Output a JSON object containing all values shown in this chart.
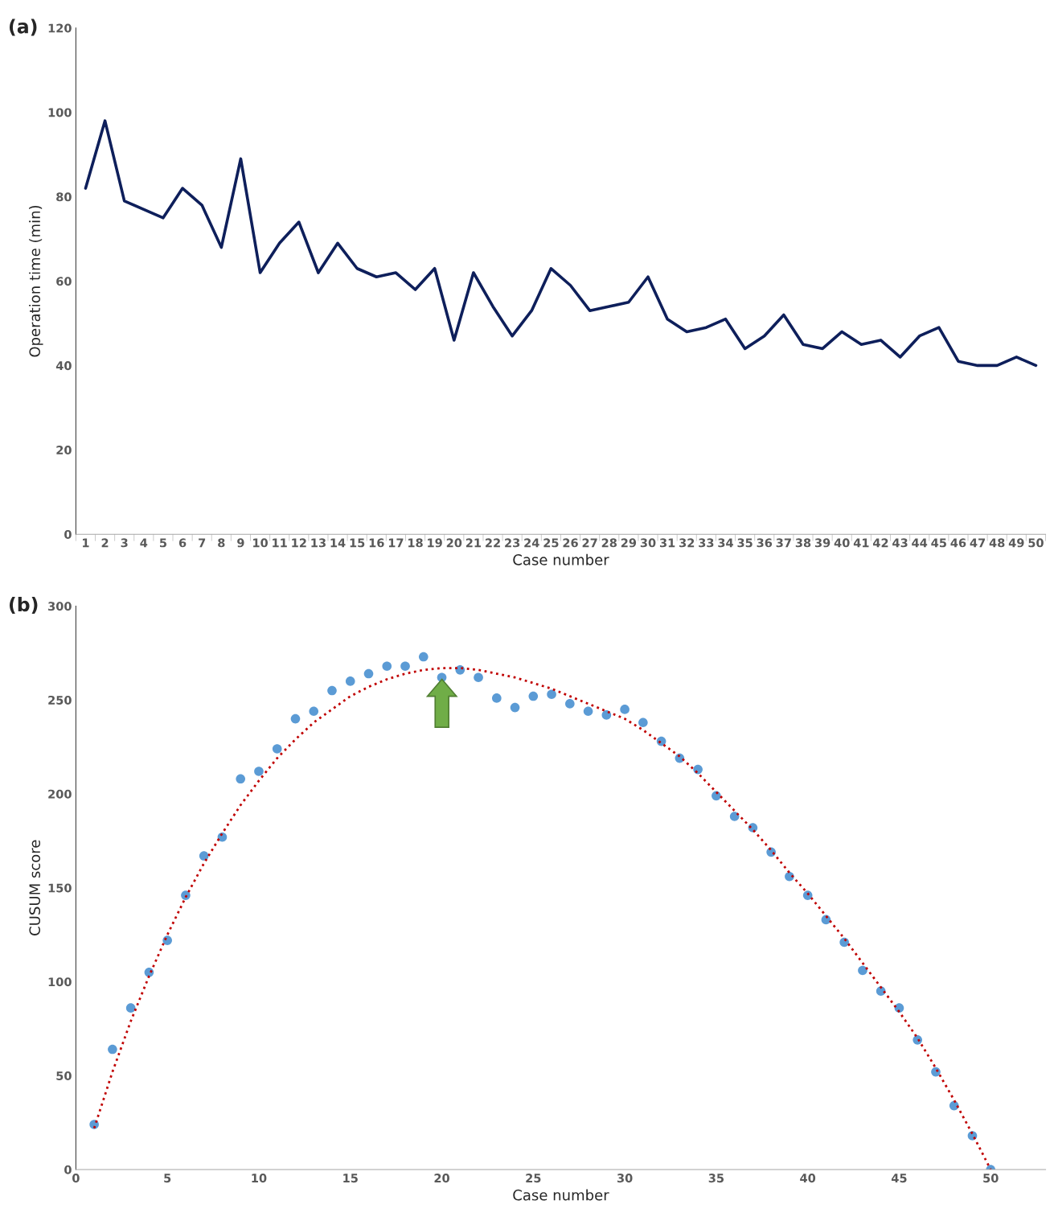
{
  "chart_data": [
    {
      "type": "line",
      "title": "(a)",
      "xlabel": "Case number",
      "ylabel": "Operation time (min)",
      "categories": [
        "1",
        "2",
        "3",
        "4",
        "5",
        "6",
        "7",
        "8",
        "9",
        "10",
        "11",
        "12",
        "13",
        "14",
        "15",
        "16",
        "17",
        "18",
        "19",
        "20",
        "21",
        "22",
        "23",
        "24",
        "25",
        "26",
        "27",
        "28",
        "29",
        "30",
        "31",
        "32",
        "33",
        "34",
        "35",
        "36",
        "37",
        "38",
        "39",
        "40",
        "41",
        "42",
        "43",
        "44",
        "45",
        "46",
        "47",
        "48",
        "49",
        "50"
      ],
      "series": [
        {
          "color": "#0e1f5b",
          "values": [
            82,
            98,
            79,
            77,
            75,
            82,
            78,
            68,
            89,
            62,
            69,
            74,
            62,
            69,
            63,
            61,
            62,
            58,
            63,
            46,
            62,
            54,
            47,
            53,
            63,
            59,
            53,
            54,
            55,
            61,
            51,
            48,
            49,
            51,
            44,
            47,
            52,
            45,
            44,
            48,
            45,
            46,
            42,
            47,
            49,
            41,
            40,
            40,
            42,
            40
          ]
        }
      ],
      "ylim": [
        0,
        120
      ],
      "yticks": [
        0,
        20,
        40,
        60,
        80,
        100,
        120
      ],
      "grid": false,
      "legend": false,
      "marker": "none",
      "line_style": "solid"
    },
    {
      "type": "scatter",
      "title": "(b)",
      "xlabel": "Case number",
      "ylabel": "CUSUM score",
      "x": [
        1,
        2,
        3,
        4,
        5,
        6,
        7,
        8,
        9,
        10,
        11,
        12,
        13,
        14,
        15,
        16,
        17,
        18,
        19,
        20,
        21,
        22,
        23,
        24,
        25,
        26,
        27,
        28,
        29,
        30,
        31,
        32,
        33,
        34,
        35,
        36,
        37,
        38,
        39,
        40,
        41,
        42,
        43,
        44,
        45,
        46,
        47,
        48,
        49,
        50
      ],
      "series": [
        {
          "type": "scatter",
          "color": "#5b9bd5",
          "marker": "circle",
          "values": [
            24,
            64,
            86,
            105,
            122,
            146,
            167,
            177,
            208,
            212,
            224,
            240,
            244,
            255,
            260,
            264,
            268,
            268,
            273,
            262,
            266,
            262,
            251,
            246,
            252,
            253,
            248,
            244,
            242,
            245,
            238,
            228,
            219,
            213,
            199,
            188,
            182,
            169,
            156,
            146,
            133,
            121,
            106,
            95,
            86,
            69,
            52,
            34,
            18,
            0
          ]
        },
        {
          "type": "line",
          "color": "#c00000",
          "line_style": "dotted",
          "marker": "none",
          "x": [
            1,
            2,
            3,
            4,
            5,
            6,
            7,
            8,
            9,
            10,
            11,
            12,
            13,
            14,
            15,
            16,
            17,
            18,
            19,
            20,
            21,
            22,
            23,
            24,
            25,
            26,
            27,
            28,
            29,
            30,
            31,
            32,
            33,
            34,
            35,
            36,
            37,
            38,
            39,
            40,
            41,
            42,
            43,
            44,
            45,
            46,
            47,
            48,
            49,
            50
          ],
          "values": [
            22,
            52,
            79,
            103,
            125,
            145,
            163,
            179,
            194,
            207,
            219,
            229,
            238,
            245,
            252,
            257,
            261,
            264,
            266,
            267,
            267,
            266,
            264,
            262,
            259,
            256,
            252,
            248,
            244,
            240,
            234,
            227,
            220,
            211,
            201,
            191,
            181,
            170,
            158,
            147,
            135,
            123,
            110,
            97,
            84,
            70,
            54,
            37,
            19,
            0
          ]
        }
      ],
      "xlim": [
        0,
        53
      ],
      "xticks": [
        0,
        5,
        10,
        15,
        20,
        25,
        30,
        35,
        40,
        45,
        50
      ],
      "ylim": [
        0,
        300
      ],
      "yticks": [
        0,
        50,
        100,
        150,
        200,
        250,
        300
      ],
      "grid": false,
      "legend": false
    }
  ]
}
